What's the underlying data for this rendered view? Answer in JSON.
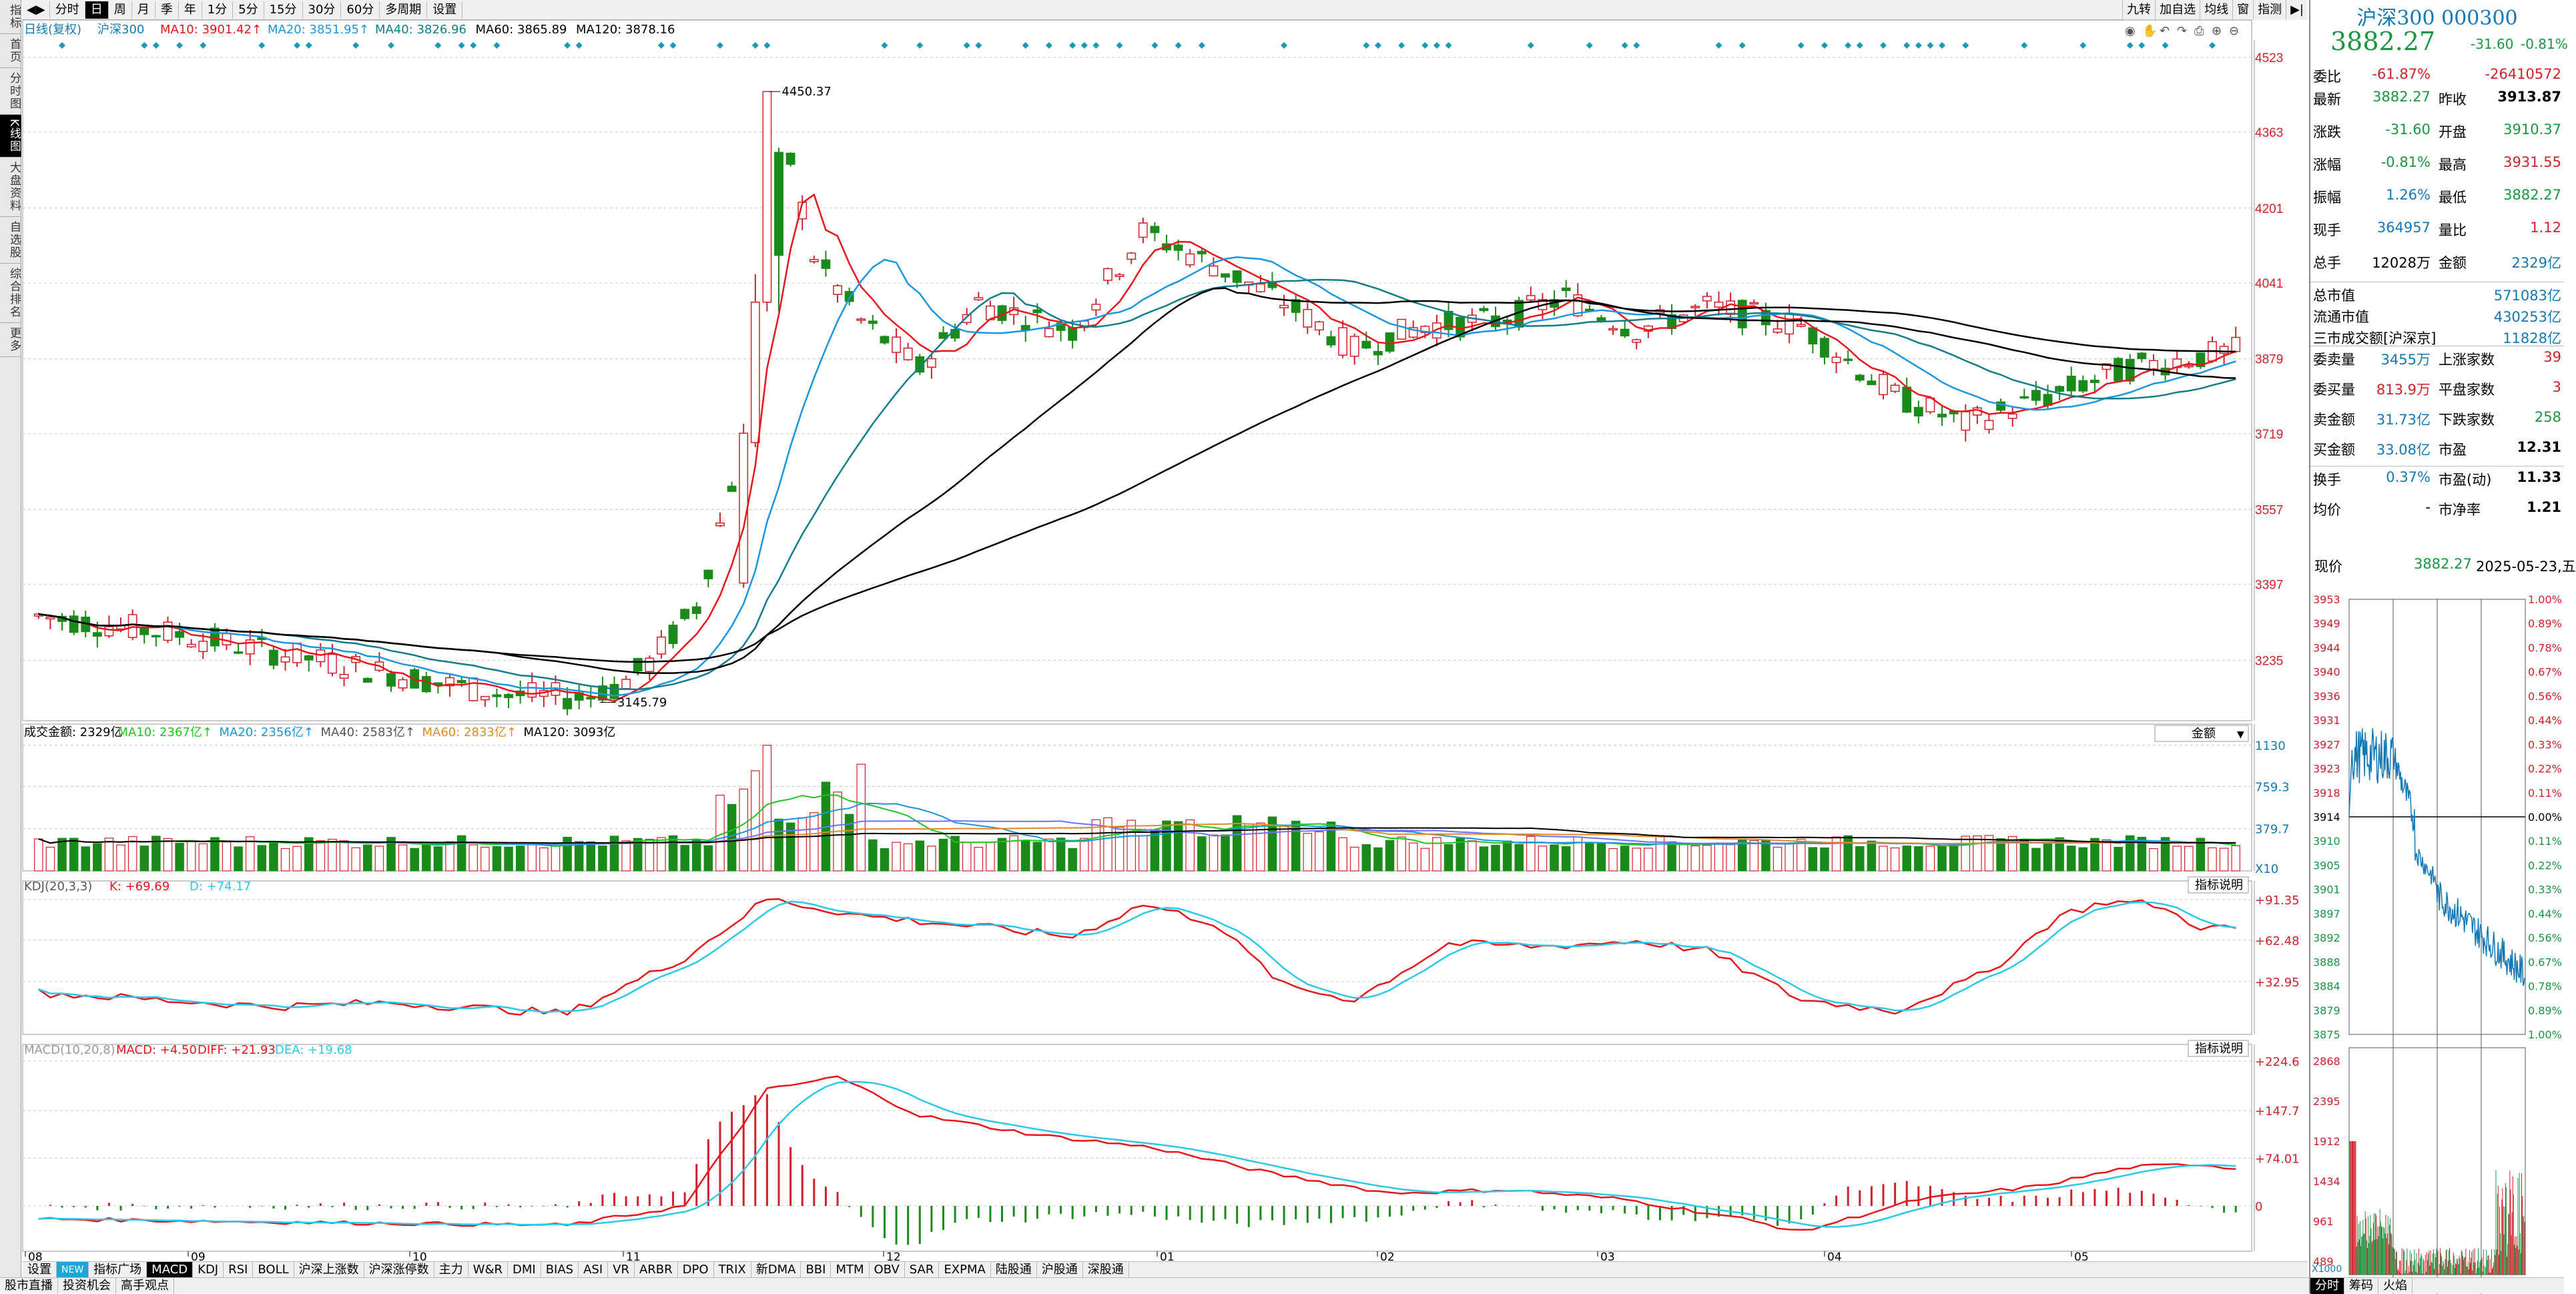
{
  "top_tabs": [
    "分时",
    "日",
    "周",
    "月",
    "季",
    "年",
    "1分",
    "5分",
    "15分",
    "30分",
    "60分",
    "多周期",
    "设置"
  ],
  "top_active": 1,
  "top_right_buttons": [
    "九转",
    "加自选",
    "均线",
    "窗",
    "指测"
  ],
  "left_side": [
    "指标",
    "首页",
    "分时图",
    "K线图",
    "大盘资料",
    "自选股",
    "综合排名",
    "更多"
  ],
  "left_active": 3,
  "ma_legend": {
    "prefix": "日线(复权)",
    "name": "沪深300",
    "ma10": "MA10: 3901.42↑",
    "ma20": "MA20: 3851.95↑",
    "ma40": "MA40: 3826.96",
    "ma60": "MA60: 3865.89",
    "ma120": "MA120: 3878.16"
  },
  "price_axis": [
    "4523",
    "4363",
    "4201",
    "4041",
    "3879",
    "3719",
    "3557",
    "3397",
    "3235"
  ],
  "price_high_label": "4450.37",
  "price_low_label": "3145.79",
  "vol_legend": {
    "total": "成交金额: 2329亿",
    "ma10": "MA10: 2367亿↑",
    "ma20": "MA20: 2356亿↑",
    "ma40": "MA40: 2583亿↑",
    "ma60": "MA60: 2833亿↑",
    "ma120": "MA120: 3093亿"
  },
  "vol_axis": [
    "1130",
    "759.3",
    "379.7",
    "X10"
  ],
  "vol_button": "金额",
  "kdj_legend": {
    "name": "KDJ(20,3,3)",
    "k": "K: +69.69",
    "d": "D: +74.17"
  },
  "kdj_axis": [
    "+91.35",
    "+62.48",
    "+32.95"
  ],
  "kdj_button": "指标说明",
  "macd_legend": {
    "name": "MACD(10,20,8)",
    "macd": "MACD: +4.50",
    "diff": "DIFF: +21.93",
    "dea": "DEA: +19.68"
  },
  "macd_axis": [
    "+224.6",
    "+147.7",
    "+74.01",
    "0"
  ],
  "macd_button": "指标说明",
  "month_labels": [
    "08",
    "09",
    "10",
    "11",
    "12",
    "01",
    "02",
    "03",
    "04",
    "05"
  ],
  "bottom_tabs": [
    "设置",
    "NEW",
    "指标广场",
    "MACD",
    "KDJ",
    "RSI",
    "BOLL",
    "沪深上涨数",
    "沪深涨停数",
    "主力",
    "W&R",
    "DMI",
    "BIAS",
    "ASI",
    "VR",
    "ARBR",
    "DPO",
    "TRIX",
    "新DMA",
    "BBI",
    "MTM",
    "OBV",
    "SAR",
    "EXPMA",
    "陆股通",
    "沪股通",
    "深股通"
  ],
  "bottom_active": 3,
  "bottom_tabs2": [
    "股市直播",
    "投资机会",
    "高手观点"
  ],
  "quote": {
    "title": "沪深300 000300",
    "price": "3882.27",
    "change": "-31.60",
    "pct": "-0.81%"
  },
  "quote_rows": [
    {
      "l1": "委比",
      "v1": "-61.87%",
      "c1": "red",
      "l2": "",
      "v2": "-26410572",
      "c2": "red"
    },
    {
      "l1": "最新",
      "v1": "3882.27",
      "c1": "green",
      "l2": "昨收",
      "v2": "3913.87",
      "c2": ""
    },
    {
      "l1": "涨跌",
      "v1": "-31.60",
      "c1": "green",
      "l2": "开盘",
      "v2": "3910.37",
      "c2": "green"
    },
    {
      "l1": "涨幅",
      "v1": "-0.81%",
      "c1": "green",
      "l2": "最高",
      "v2": "3931.55",
      "c2": "red"
    },
    {
      "l1": "振幅",
      "v1": "1.26%",
      "c1": "teal",
      "l2": "最低",
      "v2": "3882.27",
      "c2": "green"
    },
    {
      "l1": "现手",
      "v1": "364957",
      "c1": "teal",
      "l2": "量比",
      "v2": "1.12",
      "c2": "red"
    },
    {
      "l1": "总手",
      "v1": "12028万",
      "c1": "",
      "l2": "金额",
      "v2": "2329亿",
      "c2": "teal"
    },
    {
      "l1": "总市值",
      "v1": "",
      "c1": "",
      "l2": "",
      "v2": "571083亿",
      "c2": "teal"
    },
    {
      "l1": "流通市值",
      "v1": "",
      "c1": "",
      "l2": "",
      "v2": "430253亿",
      "c2": "teal"
    },
    {
      "l1": "三市成交额[沪深京]",
      "v1": "",
      "c1": "",
      "l2": "",
      "v2": "11828亿",
      "c2": "teal"
    },
    {
      "l1": "委卖量",
      "v1": "3455万",
      "c1": "teal",
      "l2": "上涨家数",
      "v2": "39",
      "c2": "red"
    },
    {
      "l1": "委买量",
      "v1": "813.9万",
      "c1": "red",
      "l2": "平盘家数",
      "v2": "3",
      "c2": "red"
    },
    {
      "l1": "卖金额",
      "v1": "31.73亿",
      "c1": "teal",
      "l2": "下跌家数",
      "v2": "258",
      "c2": "green"
    },
    {
      "l1": "买金额",
      "v1": "33.08亿",
      "c1": "teal",
      "l2": "市盈",
      "v2": "12.31",
      "c2": ""
    },
    {
      "l1": "换手",
      "v1": "0.37%",
      "c1": "teal",
      "l2": "市盈(动)",
      "v2": "11.33",
      "c2": ""
    },
    {
      "l1": "均价",
      "v1": "-",
      "c1": "",
      "l2": "市净率",
      "v2": "1.21",
      "c2": ""
    }
  ],
  "mini": {
    "label": "现价",
    "price": "3882.27",
    "date": "2025-05-23,五",
    "left_axis": [
      "3953",
      "3949",
      "3944",
      "3940",
      "3936",
      "3931",
      "3927",
      "3923",
      "3918",
      "3914",
      "3910",
      "3905",
      "3901",
      "3897",
      "3892",
      "3888",
      "3884",
      "3879",
      "3875"
    ],
    "right_axis": [
      "1.00%",
      "0.89%",
      "0.78%",
      "0.67%",
      "0.56%",
      "0.44%",
      "0.33%",
      "0.22%",
      "0.11%",
      "0.00%",
      "0.11%",
      "0.22%",
      "0.33%",
      "0.44%",
      "0.56%",
      "0.67%",
      "0.78%",
      "0.89%",
      "1.00%"
    ],
    "vol_axis": [
      "2868",
      "2395",
      "1912",
      "1434",
      "961",
      "489"
    ],
    "x10": "X1000"
  },
  "bottom_right_tabs": [
    "分时",
    "筹码",
    "火焰"
  ],
  "colors": {
    "up": "#d2202a",
    "down": "#1a8a1a",
    "ma10": "#e8161c",
    "ma20": "#1a96e0",
    "ma40": "#127d8a",
    "ma60": "#000000",
    "ma120": "#000000",
    "kline": "#e8161c",
    "dline": "#29c9e8",
    "diamond": "#1a9ab4"
  }
}
